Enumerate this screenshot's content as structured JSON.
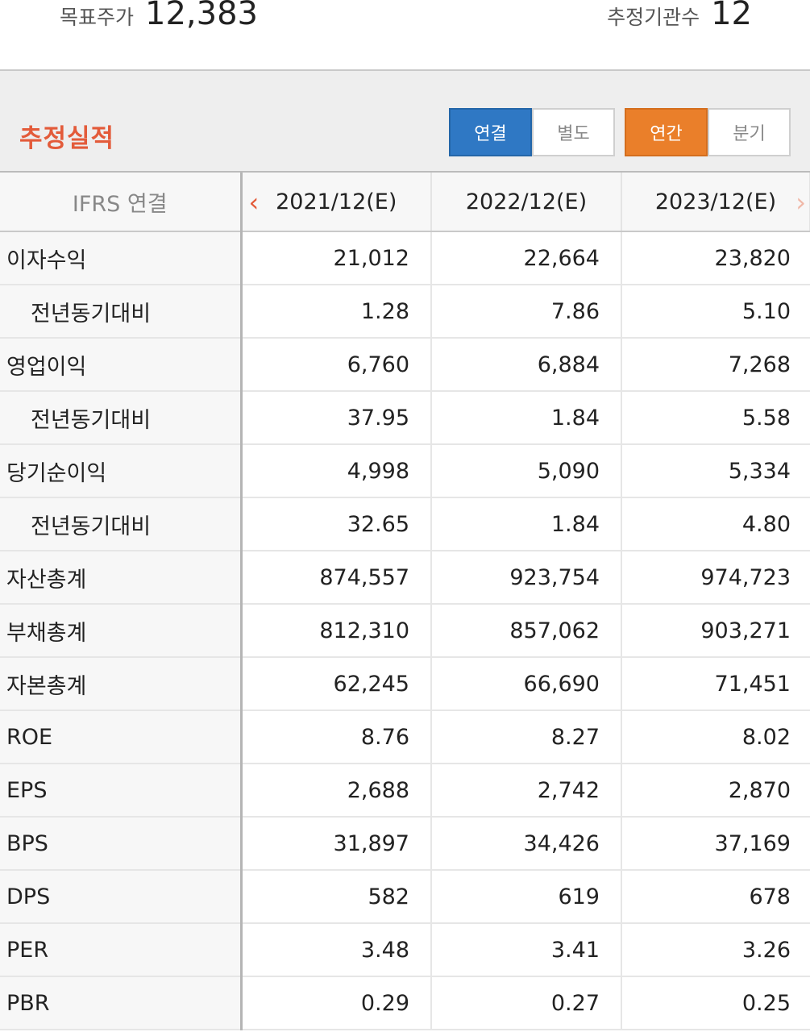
{
  "top": {
    "target_price_label": "목표주가",
    "target_price_value": "12,383",
    "institutions_label": "추정기관수",
    "institutions_value": "12"
  },
  "section": {
    "title": "추정실적",
    "toggle1": [
      "연결",
      "별도"
    ],
    "toggle2": [
      "연간",
      "분기"
    ]
  },
  "table": {
    "label_header": "IFRS 연결",
    "columns": [
      "2021/12(E)",
      "2022/12(E)",
      "2023/12(E)"
    ],
    "rows": [
      {
        "label": "이자수익",
        "values": [
          "21,012",
          "22,664",
          "23,820"
        ]
      },
      {
        "label": "전년동기대비",
        "values": [
          "1.28",
          "7.86",
          "5.10"
        ]
      },
      {
        "label": "영업이익",
        "values": [
          "6,760",
          "6,884",
          "7,268"
        ]
      },
      {
        "label": "전년동기대비",
        "values": [
          "37.95",
          "1.84",
          "5.58"
        ]
      },
      {
        "label": "당기순이익",
        "values": [
          "4,998",
          "5,090",
          "5,334"
        ]
      },
      {
        "label": "전년동기대비",
        "values": [
          "32.65",
          "1.84",
          "4.80"
        ]
      },
      {
        "label": "자산총계",
        "values": [
          "874,557",
          "923,754",
          "974,723"
        ]
      },
      {
        "label": "부채총계",
        "values": [
          "812,310",
          "857,062",
          "903,271"
        ]
      },
      {
        "label": "자본총계",
        "values": [
          "62,245",
          "66,690",
          "71,451"
        ]
      },
      {
        "label": "ROE",
        "values": [
          "8.76",
          "8.27",
          "8.02"
        ]
      },
      {
        "label": "EPS",
        "values": [
          "2,688",
          "2,742",
          "2,870"
        ]
      },
      {
        "label": "BPS",
        "values": [
          "31,897",
          "34,426",
          "37,169"
        ]
      },
      {
        "label": "DPS",
        "values": [
          "582",
          "619",
          "678"
        ]
      },
      {
        "label": "PER",
        "values": [
          "3.48",
          "3.41",
          "3.26"
        ]
      },
      {
        "label": "PBR",
        "values": [
          "0.29",
          "0.27",
          "0.25"
        ]
      }
    ]
  },
  "colors": {
    "accent_red": "#e35b3a",
    "active_blue": "#2f78c4",
    "active_orange": "#ea7f2a"
  },
  "icons": {
    "prev": "chevron-left-icon",
    "next": "chevron-right-icon"
  }
}
